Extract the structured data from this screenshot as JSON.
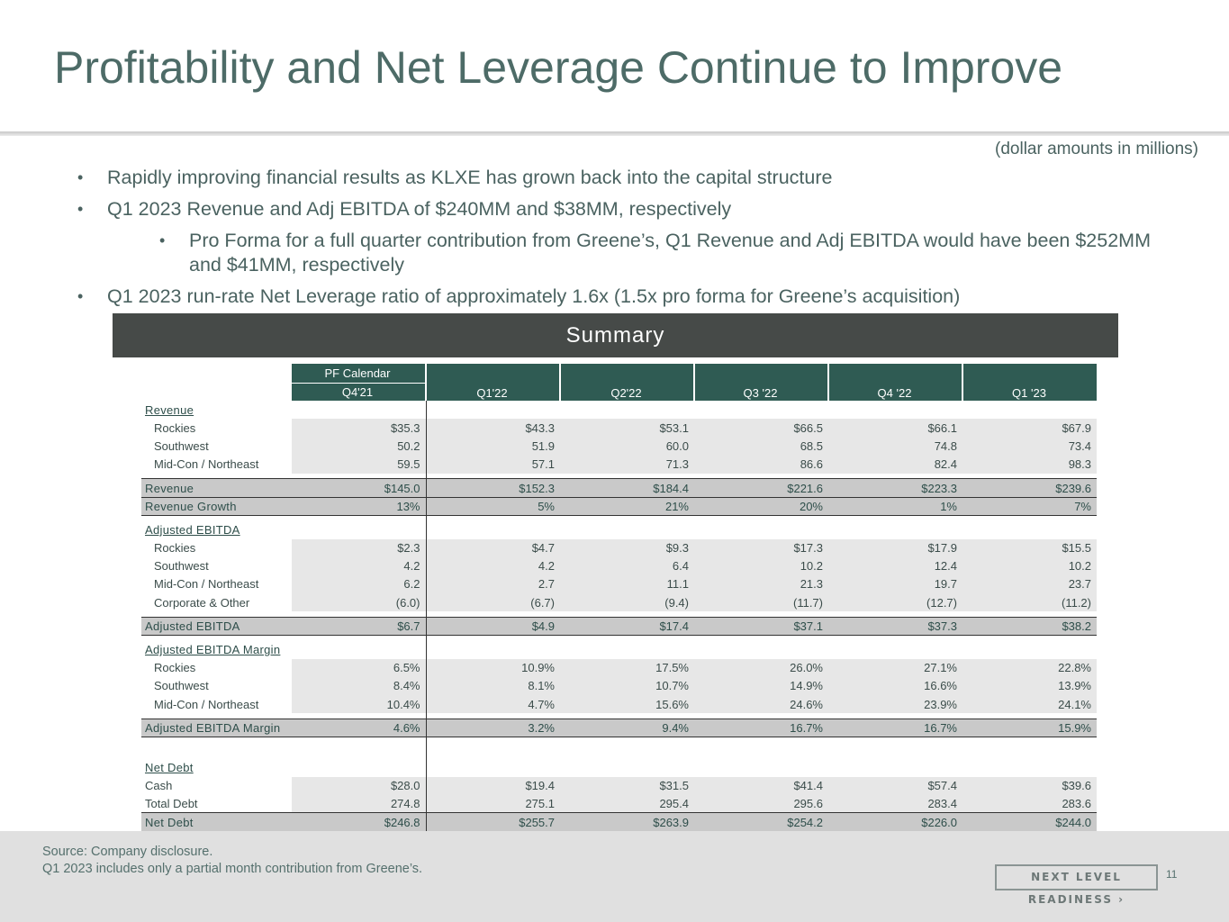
{
  "title": "Profitability and Net Leverage Continue to Improve",
  "units_note": "(dollar amounts in millions)",
  "bullets": [
    "Rapidly improving financial results as KLXE has grown back into the capital structure",
    "Q1 2023 Revenue and Adj EBITDA of $240MM and $38MM, respectively",
    "Pro Forma for a full quarter contribution from Greene’s, Q1 Revenue and Adj EBITDA would have been $252MM and $41MM, respectively",
    "Q1 2023 run-rate Net Leverage ratio of approximately 1.6x (1.5x pro forma for Greene’s acquisition)"
  ],
  "bullet_symbol": "•",
  "summary_title": "Summary",
  "table": {
    "pf_calendar": "PF Calendar",
    "columns": [
      "Q4'21",
      "Q1'22",
      "Q2'22",
      "Q3 '22",
      "Q4 '22",
      "Q1 '23"
    ],
    "revenue_header": "Revenue",
    "revenue_rows": [
      {
        "label": "Rockies",
        "values": [
          "$35.3",
          "$43.3",
          "$53.1",
          "$66.5",
          "$66.1",
          "$67.9"
        ]
      },
      {
        "label": "Southwest",
        "values": [
          "50.2",
          "51.9",
          "60.0",
          "68.5",
          "74.8",
          "73.4"
        ]
      },
      {
        "label": "Mid-Con / Northeast",
        "values": [
          "59.5",
          "57.1",
          "71.3",
          "86.6",
          "82.4",
          "98.3"
        ]
      }
    ],
    "revenue_total": {
      "label": "Revenue",
      "values": [
        "$145.0",
        "$152.3",
        "$184.4",
        "$221.6",
        "$223.3",
        "$239.6"
      ]
    },
    "revenue_growth": {
      "label": "Revenue Growth",
      "values": [
        "13%",
        "5%",
        "21%",
        "20%",
        "1%",
        "7%"
      ]
    },
    "ebitda_header": "Adjusted EBITDA",
    "ebitda_rows": [
      {
        "label": "Rockies",
        "values": [
          "$2.3",
          "$4.7",
          "$9.3",
          "$17.3",
          "$17.9",
          "$15.5"
        ]
      },
      {
        "label": "Southwest",
        "values": [
          "4.2",
          "4.2",
          "6.4",
          "10.2",
          "12.4",
          "10.2"
        ]
      },
      {
        "label": "Mid-Con / Northeast",
        "values": [
          "6.2",
          "2.7",
          "11.1",
          "21.3",
          "19.7",
          "23.7"
        ]
      },
      {
        "label": "Corporate & Other",
        "values": [
          "(6.0)",
          "(6.7)",
          "(9.4)",
          "(11.7)",
          "(12.7)",
          "(11.2)"
        ]
      }
    ],
    "ebitda_total": {
      "label": "Adjusted EBITDA",
      "values": [
        "$6.7",
        "$4.9",
        "$17.4",
        "$37.1",
        "$37.3",
        "$38.2"
      ]
    },
    "margin_header": "Adjusted EBITDA Margin",
    "margin_rows": [
      {
        "label": "Rockies",
        "values": [
          "6.5%",
          "10.9%",
          "17.5%",
          "26.0%",
          "27.1%",
          "22.8%"
        ]
      },
      {
        "label": "Southwest",
        "values": [
          "8.4%",
          "8.1%",
          "10.7%",
          "14.9%",
          "16.6%",
          "13.9%"
        ]
      },
      {
        "label": "Mid-Con / Northeast",
        "values": [
          "10.4%",
          "4.7%",
          "15.6%",
          "24.6%",
          "23.9%",
          "24.1%"
        ]
      }
    ],
    "margin_total": {
      "label": "Adjusted EBITDA Margin",
      "values": [
        "4.6%",
        "3.2%",
        "9.4%",
        "16.7%",
        "16.7%",
        "15.9%"
      ]
    },
    "debt_header": "Net Debt",
    "debt_rows": [
      {
        "label": "Cash",
        "values": [
          "$28.0",
          "$19.4",
          "$31.5",
          "$41.4",
          "$57.4",
          "$39.6"
        ]
      },
      {
        "label": "Total Debt",
        "values": [
          "274.8",
          "275.1",
          "295.4",
          "295.6",
          "283.4",
          "283.6"
        ]
      }
    ],
    "debt_total": {
      "label": "Net Debt",
      "values": [
        "$246.8",
        "$255.7",
        "$263.9",
        "$254.2",
        "$226.0",
        "$244.0"
      ]
    }
  },
  "footer": {
    "source": "Source: Company disclosure.",
    "note": "Q1 2023 includes only a partial month contribution from Greene’s.",
    "brand": "NEXT LEVEL READINESS ›",
    "page_number": "11"
  }
}
